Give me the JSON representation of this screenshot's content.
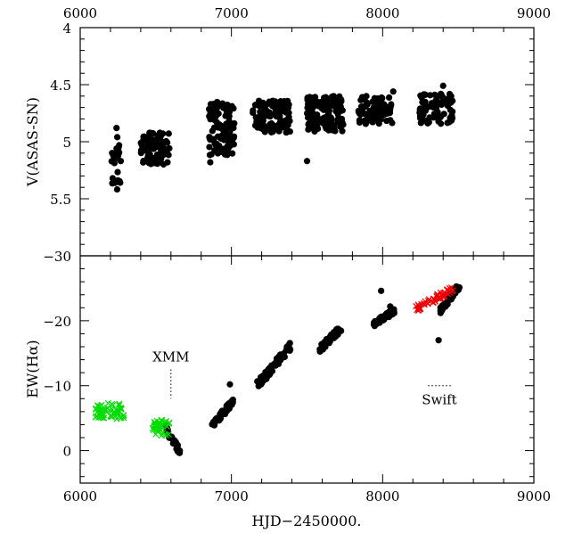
{
  "chart_data": [
    {
      "type": "scatter",
      "panel": "top",
      "xlabel": "",
      "ylabel": "V(ASAS-SN)",
      "xlim": [
        6000,
        9000
      ],
      "ylim": [
        6.0,
        4.0
      ],
      "y_inverted": true,
      "xticks": [
        "6000",
        "7000",
        "8000",
        "9000"
      ],
      "xticks_values": [
        6000,
        7000,
        8000,
        9000
      ],
      "yticks": [
        "4",
        "4.5",
        "5",
        "5.5"
      ],
      "yticks_values": [
        4.0,
        4.5,
        5.0,
        5.5
      ],
      "top_axis_labels": true,
      "grid": false,
      "series": [
        {
          "color": "#000000",
          "marker": "circle",
          "clusters": [
            {
              "x": [
                6200,
                6270
              ],
              "y": [
                4.95,
                5.42
              ],
              "n": 22
            },
            {
              "x": [
                6400,
                6590
              ],
              "y": [
                4.92,
                5.2
              ],
              "n": 90
            },
            {
              "x": [
                6850,
                7020
              ],
              "y": [
                4.65,
                5.12
              ],
              "n": 110
            },
            {
              "x": [
                7140,
                7390
              ],
              "y": [
                4.64,
                4.92
              ],
              "n": 120
            },
            {
              "x": [
                7500,
                7740
              ],
              "y": [
                4.6,
                4.92
              ],
              "n": 130
            },
            {
              "x": [
                7840,
                8070
              ],
              "y": [
                4.6,
                4.85
              ],
              "n": 80
            },
            {
              "x": [
                8240,
                8470
              ],
              "y": [
                4.58,
                4.85
              ],
              "n": 80
            }
          ],
          "points": [
            {
              "x": 6240,
              "y": 4.88
            },
            {
              "x": 6245,
              "y": 4.96
            },
            {
              "x": 7500,
              "y": 5.17
            },
            {
              "x": 6860,
              "y": 5.18
            },
            {
              "x": 8400,
              "y": 4.51
            },
            {
              "x": 8070,
              "y": 4.56
            }
          ]
        }
      ]
    },
    {
      "type": "scatter",
      "panel": "bottom",
      "xlabel": "HJD−2450000.",
      "ylabel": "EW(Hα)",
      "xlim": [
        6000,
        9000
      ],
      "ylim": [
        5,
        -30
      ],
      "y_inverted": true,
      "xticks": [
        "6000",
        "7000",
        "8000",
        "9000"
      ],
      "xticks_values": [
        6000,
        7000,
        8000,
        9000
      ],
      "yticks": [
        "−30",
        "−20",
        "−10",
        "0"
      ],
      "yticks_values": [
        -30,
        -20,
        -10,
        0
      ],
      "grid": false,
      "series": [
        {
          "color": "#000000",
          "marker": "circle",
          "trends": [
            {
              "x": [
                6560,
                6660
              ],
              "y": [
                -3.6,
                0.2
              ],
              "n": 30
            },
            {
              "x": [
                6870,
                7010
              ],
              "y": [
                -3.8,
                -7.5
              ],
              "n": 60
            },
            {
              "x": [
                7170,
                7390
              ],
              "y": [
                -10.0,
                -16.0
              ],
              "n": 70
            },
            {
              "x": [
                7580,
                7730
              ],
              "y": [
                -15.5,
                -19.0
              ],
              "n": 50
            },
            {
              "x": [
                7940,
                8080
              ],
              "y": [
                -19.5,
                -21.5
              ],
              "n": 50
            },
            {
              "x": [
                8380,
                8510
              ],
              "y": [
                -21.5,
                -25.5
              ],
              "n": 60
            }
          ],
          "points": [
            {
              "x": 6990,
              "y": -10.2
            },
            {
              "x": 7990,
              "y": -24.6
            },
            {
              "x": 8370,
              "y": -17.0
            },
            {
              "x": 8050,
              "y": -22.2
            }
          ]
        },
        {
          "color": "#00dd00",
          "marker": "cross",
          "clusters": [
            {
              "x": [
                6100,
                6290
              ],
              "y": [
                -4.8,
                -7.3
              ],
              "n": 60
            },
            {
              "x": [
                6480,
                6590
              ],
              "y": [
                -2.3,
                -4.7
              ],
              "n": 40
            }
          ]
        },
        {
          "color": "#ee0000",
          "marker": "cross",
          "trends": [
            {
              "x": [
                8220,
                8470
              ],
              "y": [
                -21.8,
                -25.0
              ],
              "n": 50
            }
          ]
        }
      ],
      "annotations": [
        {
          "text": "XMM",
          "x": 6600,
          "y_from": -12.5,
          "y_to": -8.0
        },
        {
          "text": "Swift",
          "x_from": 8300,
          "x_to": 8450,
          "y": -10.0
        }
      ]
    }
  ]
}
